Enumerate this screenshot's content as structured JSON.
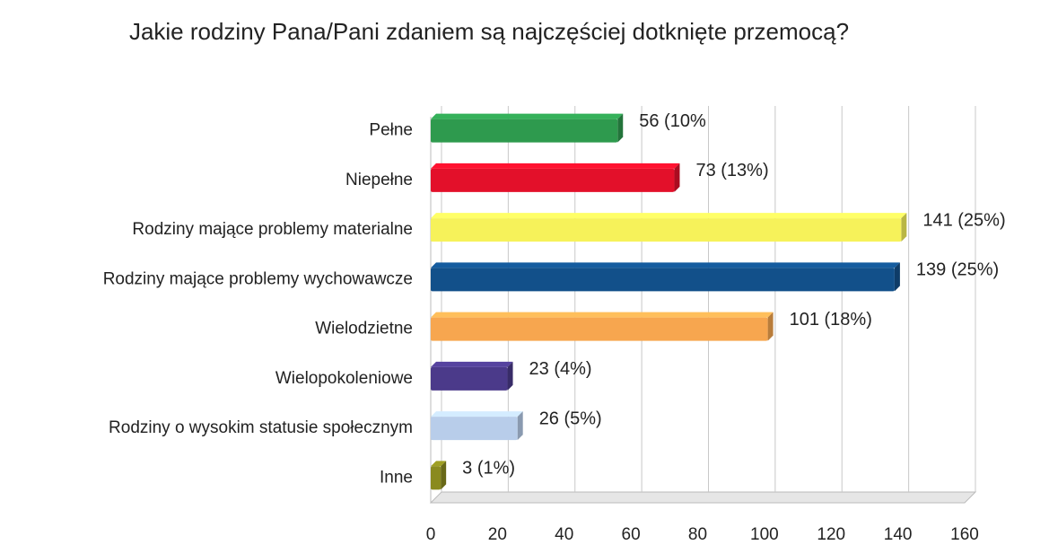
{
  "chart_data": {
    "type": "bar",
    "orientation": "horizontal",
    "title": "Jakie rodziny Pana/Pani zdaniem są najczęściej dotknięte przemocą?",
    "categories": [
      "Pełne",
      "Niepełne",
      "Rodziny mające problemy materialne",
      "Rodziny mające problemy wychowawcze",
      "Wielodzietne",
      "Wielopokoleniowe",
      "Rodziny o wysokim statusie społecznym",
      "Inne"
    ],
    "values": [
      56,
      73,
      141,
      139,
      101,
      23,
      26,
      3
    ],
    "value_labels": [
      "56 (10%",
      "73 (13%)",
      "141 (25%)",
      "139 (25%)",
      "101 (18%)",
      "23 (4%)",
      "26 (5%)",
      "3 (1%)"
    ],
    "colors": [
      "#2e9a4e",
      "#e3102a",
      "#f6f25a",
      "#12508a",
      "#f7a64f",
      "#4b3a8a",
      "#b8cdea",
      "#8a8a1e"
    ],
    "xlim": [
      0,
      160
    ],
    "xticks": [
      0,
      20,
      40,
      60,
      80,
      100,
      120,
      140,
      160
    ],
    "grid": true
  }
}
